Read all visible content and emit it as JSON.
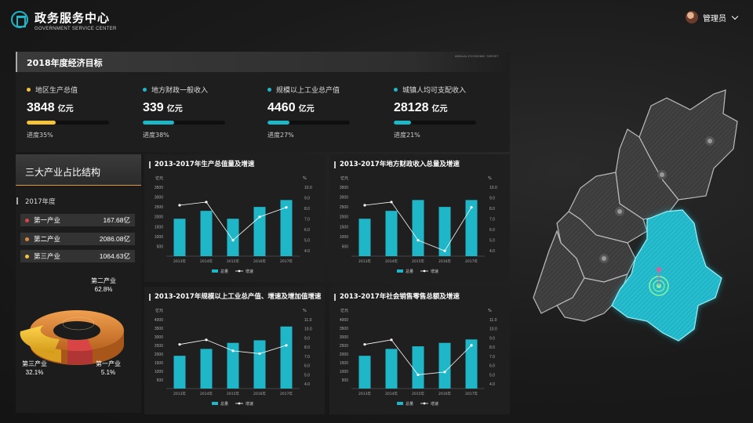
{
  "header": {
    "title": "政务服务中心",
    "subtitle": "GOVERNMENT SERVICE CENTER",
    "user": "管理员"
  },
  "targets": {
    "title": "2018年度经济目标",
    "en": "ANNUAL ECONOMIC TARGET",
    "items": [
      {
        "label": "地区生产总值",
        "value": "3848",
        "unit": "亿元",
        "progress_text": "进度35%",
        "progress": 0.35,
        "color": "#f5c33a"
      },
      {
        "label": "地方财政一般收入",
        "value": "339",
        "unit": "亿元",
        "progress_text": "进度38%",
        "progress": 0.38,
        "color": "#1fb6c8"
      },
      {
        "label": "规模以上工业总产值",
        "value": "4460",
        "unit": "亿元",
        "progress_text": "进度27%",
        "progress": 0.27,
        "color": "#1fb6c8"
      },
      {
        "label": "城镇人均可支配收入",
        "value": "28128",
        "unit": "亿元",
        "progress_text": "进度21%",
        "progress": 0.21,
        "color": "#1fb6c8"
      }
    ]
  },
  "industry": {
    "title": "三大产业占比结构",
    "year": "2017年度",
    "rows": [
      {
        "name": "第一产业",
        "value": "167.68亿",
        "color": "#d94545"
      },
      {
        "name": "第二产业",
        "value": "2086.08亿",
        "color": "#e0893a"
      },
      {
        "name": "第三产业",
        "value": "1064.63亿",
        "color": "#f5c33a"
      }
    ],
    "labels": [
      {
        "name": "第二产业",
        "pct": "62.8%"
      },
      {
        "name": "第三产业",
        "pct": "32.1%"
      },
      {
        "name": "第一产业",
        "pct": "5.1%"
      }
    ]
  },
  "chart_data": [
    {
      "type": "bar",
      "title": "2013-2017年生产总值量及增速",
      "categories": [
        "2013年",
        "2014年",
        "2015年",
        "2016年",
        "2017年"
      ],
      "y_unit": "亿元",
      "y2_unit": "%",
      "yticks": [
        "500",
        "1000",
        "1500",
        "2000",
        "2500",
        "3000",
        "3500"
      ],
      "y2ticks": [
        "4.0",
        "5.0",
        "6.0",
        "7.0",
        "8.0",
        "9.0",
        "10.0"
      ],
      "ylim": [
        0,
        3500
      ],
      "y2lim": [
        3.5,
        10.0
      ],
      "series": [
        {
          "name": "总量",
          "type": "bar",
          "values": [
            1900,
            2300,
            1900,
            2500,
            2850
          ]
        },
        {
          "name": "增速",
          "type": "line",
          "values": [
            8.3,
            8.6,
            5.0,
            7.2,
            8.1
          ]
        }
      ]
    },
    {
      "type": "bar",
      "title": "2013-2017年地方财政收入总量及增速",
      "categories": [
        "2013年",
        "2014年",
        "2015年",
        "2016年",
        "2017年"
      ],
      "y_unit": "亿元",
      "y2_unit": "%",
      "yticks": [
        "500",
        "1000",
        "1500",
        "2000",
        "2500",
        "3000",
        "3500"
      ],
      "y2ticks": [
        "4.0",
        "5.0",
        "6.0",
        "7.0",
        "8.0",
        "9.0",
        "10.0"
      ],
      "ylim": [
        0,
        3500
      ],
      "y2lim": [
        3.5,
        10.0
      ],
      "series": [
        {
          "name": "总量",
          "type": "bar",
          "values": [
            1900,
            2300,
            2850,
            2500,
            2850
          ]
        },
        {
          "name": "增速",
          "type": "line",
          "values": [
            8.3,
            8.6,
            5.0,
            4.0,
            8.1
          ]
        }
      ]
    },
    {
      "type": "bar",
      "title": "2013-2017年规模以上工业总产值、增速及增加值增速",
      "categories": [
        "2013年",
        "2014年",
        "2015年",
        "2016年",
        "2017年"
      ],
      "y_unit": "亿元",
      "y2_unit": "%",
      "yticks": [
        "500",
        "1000",
        "1500",
        "2000",
        "2500",
        "3000",
        "3500",
        "4000"
      ],
      "y2ticks": [
        "4.0",
        "5.0",
        "6.0",
        "7.0",
        "8.0",
        "9.0",
        "10.0",
        "11.0"
      ],
      "ylim": [
        0,
        4000
      ],
      "y2lim": [
        3.5,
        11.0
      ],
      "series": [
        {
          "name": "总量",
          "type": "bar",
          "values": [
            1900,
            2300,
            2650,
            2800,
            3600
          ]
        },
        {
          "name": "增速",
          "type": "line",
          "values": [
            8.3,
            8.8,
            7.6,
            7.3,
            8.2
          ]
        }
      ]
    },
    {
      "type": "bar",
      "title": "2013-2017年社会销售零售总额及增速",
      "categories": [
        "2013年",
        "2014年",
        "2015年",
        "2016年",
        "2017年"
      ],
      "y_unit": "亿元",
      "y2_unit": "%",
      "yticks": [
        "500",
        "1000",
        "1500",
        "2000",
        "2500",
        "3000",
        "3500",
        "4000"
      ],
      "y2ticks": [
        "4.0",
        "5.0",
        "6.0",
        "7.0",
        "8.0",
        "9.0",
        "10.0",
        "11.0"
      ],
      "ylim": [
        0,
        4000
      ],
      "y2lim": [
        3.5,
        11.0
      ],
      "series": [
        {
          "name": "总量",
          "type": "bar",
          "values": [
            1900,
            2300,
            2450,
            2650,
            2850
          ]
        },
        {
          "name": "增速",
          "type": "line",
          "values": [
            8.3,
            8.8,
            5.0,
            5.3,
            8.2
          ]
        }
      ]
    }
  ],
  "colors": {
    "accent": "#1fb6c8",
    "orange": "#e0893a",
    "yellow": "#f5c33a",
    "red": "#d94545"
  }
}
